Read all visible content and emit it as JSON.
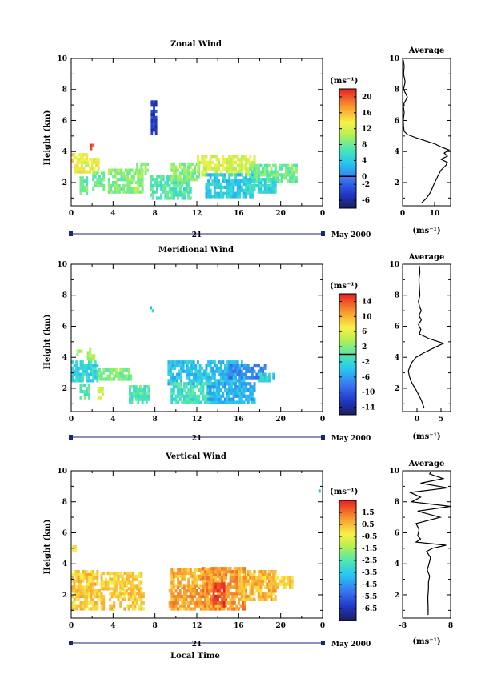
{
  "chart_data": [
    {
      "type": "heatmap",
      "title": "Zonal Wind",
      "xlabel": "",
      "ylabel": "Height (km)",
      "xlim": [
        0,
        24
      ],
      "ylim": [
        0.5,
        10
      ],
      "xticks": [
        "0",
        "4",
        "8",
        "12",
        "16",
        "20",
        "0"
      ],
      "yticks": [
        "2",
        "4",
        "6",
        "8",
        "10"
      ],
      "date_day": "21",
      "date_label": "May 2000",
      "colorbar": {
        "unit": "(ms⁻¹)",
        "min": -8,
        "max": 22,
        "ticks": [
          "-6",
          "-2",
          "0",
          "4",
          "8",
          "12",
          "16",
          "20"
        ],
        "contour": 0
      },
      "patches": [
        {
          "x": [
            0.0,
            1.5
          ],
          "y": [
            3.3,
            3.9
          ],
          "v": 14
        },
        {
          "x": [
            0.3,
            2.6
          ],
          "y": [
            2.6,
            3.6
          ],
          "v": 13
        },
        {
          "x": [
            0.8,
            1.5
          ],
          "y": [
            1.2,
            2.4
          ],
          "v": 8
        },
        {
          "x": [
            1.8,
            2.2
          ],
          "y": [
            4.1,
            4.5
          ],
          "v": 20
        },
        {
          "x": [
            2.0,
            3.2
          ],
          "y": [
            1.5,
            2.6
          ],
          "v": 8
        },
        {
          "x": [
            3.5,
            6.8
          ],
          "y": [
            1.3,
            2.9
          ],
          "v": 9
        },
        {
          "x": [
            6.2,
            7.3
          ],
          "y": [
            2.5,
            3.2
          ],
          "v": 10
        },
        {
          "x": [
            7.5,
            11.3
          ],
          "y": [
            0.9,
            2.4
          ],
          "v": 7
        },
        {
          "x": [
            9.5,
            12.2
          ],
          "y": [
            2.1,
            3.3
          ],
          "v": 9
        },
        {
          "x": [
            12.0,
            17.5
          ],
          "y": [
            2.4,
            3.8
          ],
          "v": 12
        },
        {
          "x": [
            12.8,
            17.2
          ],
          "y": [
            1.0,
            2.6
          ],
          "v": 4
        },
        {
          "x": [
            17.0,
            21.5
          ],
          "y": [
            2.0,
            3.2
          ],
          "v": 8
        },
        {
          "x": [
            16.8,
            19.5
          ],
          "y": [
            1.3,
            2.3
          ],
          "v": 5
        },
        {
          "x": [
            7.6,
            8.2
          ],
          "y": [
            5.1,
            7.2
          ],
          "v": -4
        }
      ],
      "profile": {
        "title": "Average",
        "xlabel": "(ms⁻¹)",
        "xlim": [
          0,
          15
        ],
        "xticks": [
          "0",
          "10"
        ],
        "yticks": [
          "2",
          "4",
          "6",
          "8",
          "10"
        ],
        "height": [
          0.7,
          1.0,
          1.3,
          1.6,
          1.9,
          2.2,
          2.5,
          2.8,
          3.1,
          3.3,
          3.5,
          3.7,
          3.9,
          4.1,
          4.3,
          4.5,
          4.7,
          4.9,
          5.1,
          5.3,
          5.6,
          6.0,
          6.5,
          7.0,
          7.5,
          8.0,
          8.5,
          9.0,
          9.5,
          9.9
        ],
        "value": [
          6.0,
          7.5,
          8.5,
          9.2,
          9.8,
          10.5,
          11.2,
          12.0,
          13.5,
          14.0,
          12.0,
          14.0,
          13.0,
          14.5,
          12.0,
          10.0,
          7.0,
          4.0,
          1.5,
          0.5,
          0.3,
          0.2,
          0.5,
          0.2,
          1.5,
          0.3,
          0.8,
          0.3,
          0.5,
          0.2
        ]
      }
    },
    {
      "type": "heatmap",
      "title": "Meridional Wind",
      "xlabel": "",
      "ylabel": "Height (km)",
      "xlim": [
        0,
        24
      ],
      "ylim": [
        0.5,
        10
      ],
      "xticks": [
        "0",
        "4",
        "8",
        "12",
        "16",
        "20",
        "0"
      ],
      "yticks": [
        "2",
        "4",
        "6",
        "8",
        "10"
      ],
      "date_day": "21",
      "date_label": "May 2000",
      "colorbar": {
        "unit": "(ms⁻¹)",
        "min": -16,
        "max": 16,
        "ticks": [
          "-14",
          "-10",
          "-6",
          "-2",
          "2",
          "6",
          "10",
          "14"
        ],
        "contour": 0
      },
      "patches": [
        {
          "x": [
            0.0,
            2.5
          ],
          "y": [
            2.4,
            3.7
          ],
          "v": -2
        },
        {
          "x": [
            1.5,
            2.2
          ],
          "y": [
            3.8,
            4.6
          ],
          "v": 4
        },
        {
          "x": [
            0.5,
            1.0
          ],
          "y": [
            4.1,
            4.4
          ],
          "v": 4
        },
        {
          "x": [
            2.6,
            5.8
          ],
          "y": [
            2.5,
            3.2
          ],
          "v": 2
        },
        {
          "x": [
            0.8,
            1.6
          ],
          "y": [
            1.3,
            2.2
          ],
          "v": 0
        },
        {
          "x": [
            2.5,
            3.1
          ],
          "y": [
            1.3,
            2.1
          ],
          "v": 5
        },
        {
          "x": [
            5.5,
            7.5
          ],
          "y": [
            1.0,
            2.0
          ],
          "v": 0
        },
        {
          "x": [
            9.2,
            16.5
          ],
          "y": [
            2.2,
            3.7
          ],
          "v": -4
        },
        {
          "x": [
            9.5,
            13.5
          ],
          "y": [
            1.0,
            2.3
          ],
          "v": -1
        },
        {
          "x": [
            13.0,
            17.5
          ],
          "y": [
            1.0,
            2.4
          ],
          "v": -5
        },
        {
          "x": [
            15.0,
            18.5
          ],
          "y": [
            2.6,
            3.6
          ],
          "v": -7
        },
        {
          "x": [
            17.8,
            19.3
          ],
          "y": [
            2.4,
            3.0
          ],
          "v": -3
        },
        {
          "x": [
            7.5,
            7.8
          ],
          "y": [
            6.9,
            7.2
          ],
          "v": -2
        }
      ],
      "profile": {
        "title": "Average",
        "xlabel": "(ms⁻¹)",
        "xlim": [
          -3,
          7
        ],
        "xticks": [
          "0",
          "5"
        ],
        "yticks": [
          "2",
          "4",
          "6",
          "8",
          "10"
        ],
        "height": [
          0.7,
          1.0,
          1.3,
          1.6,
          1.9,
          2.2,
          2.5,
          2.8,
          3.1,
          3.4,
          3.7,
          4.0,
          4.3,
          4.6,
          4.9,
          5.2,
          5.5,
          5.8,
          6.1,
          6.4,
          6.7,
          7.0,
          7.3,
          7.6,
          8.0,
          8.5,
          9.0,
          9.5,
          9.9
        ],
        "value": [
          1.5,
          1.2,
          0.8,
          0.3,
          -0.2,
          -0.8,
          -1.3,
          -1.6,
          -1.8,
          -1.5,
          -1.0,
          -0.2,
          1.5,
          3.5,
          5.5,
          2.5,
          0.5,
          0.8,
          0.3,
          0.9,
          0.4,
          0.9,
          0.5,
          0.3,
          0.6,
          0.5,
          0.4,
          0.6,
          0.5
        ]
      }
    },
    {
      "type": "heatmap",
      "title": "Vertical Wind",
      "xlabel": "Local Time",
      "ylabel": "Height (km)",
      "xlim": [
        0,
        24
      ],
      "ylim": [
        0.5,
        10
      ],
      "xticks": [
        "0",
        "4",
        "8",
        "12",
        "16",
        "20",
        "0"
      ],
      "yticks": [
        "2",
        "4",
        "6",
        "8",
        "10"
      ],
      "date_day": "21",
      "date_label": "May 2000",
      "colorbar": {
        "unit": "(ms⁻¹)",
        "min": -7.5,
        "max": 2.5,
        "ticks": [
          "-6.5",
          "-5.5",
          "-4.5",
          "-3.5",
          "-2.5",
          "-1.5",
          "-0.5",
          "0.5",
          "1.5"
        ],
        "contour": null
      },
      "patches": [
        {
          "x": [
            0.0,
            2.6
          ],
          "y": [
            2.2,
            3.6
          ],
          "v": 0.3
        },
        {
          "x": [
            0.0,
            3.2
          ],
          "y": [
            1.0,
            2.2
          ],
          "v": 0.2
        },
        {
          "x": [
            2.8,
            6.8
          ],
          "y": [
            2.3,
            3.4
          ],
          "v": 0.1
        },
        {
          "x": [
            3.6,
            7.0
          ],
          "y": [
            1.0,
            2.2
          ],
          "v": 0.2
        },
        {
          "x": [
            0.1,
            0.5
          ],
          "y": [
            4.8,
            5.2
          ],
          "v": 0.1
        },
        {
          "x": [
            9.3,
            13.5
          ],
          "y": [
            1.0,
            2.6
          ],
          "v": 0.8
        },
        {
          "x": [
            9.5,
            14.5
          ],
          "y": [
            2.5,
            3.7
          ],
          "v": 0.6
        },
        {
          "x": [
            12.5,
            16.5
          ],
          "y": [
            1.0,
            3.8
          ],
          "v": 1.0
        },
        {
          "x": [
            13.5,
            14.5
          ],
          "y": [
            1.2,
            2.8
          ],
          "v": 2.2
        },
        {
          "x": [
            16.0,
            19.5
          ],
          "y": [
            1.6,
            3.5
          ],
          "v": 0.5
        },
        {
          "x": [
            19.0,
            21.0
          ],
          "y": [
            2.4,
            3.2
          ],
          "v": 0.2
        },
        {
          "x": [
            23.6,
            23.8
          ],
          "y": [
            8.4,
            8.7
          ],
          "v": -3.5
        }
      ],
      "profile": {
        "title": "Average",
        "xlabel": "(ms⁻¹)",
        "xlim": [
          -8,
          8
        ],
        "xticks": [
          "-8",
          "8"
        ],
        "yticks": [
          "2",
          "4",
          "6",
          "8",
          "10"
        ],
        "height": [
          0.7,
          1.2,
          1.8,
          2.4,
          2.8,
          3.2,
          3.6,
          4.0,
          4.4,
          4.8,
          5.0,
          5.2,
          5.4,
          5.6,
          5.8,
          6.2,
          6.6,
          7.0,
          7.4,
          7.7,
          8.0,
          8.3,
          8.6,
          8.9,
          9.2,
          9.5,
          9.8,
          9.95
        ],
        "value": [
          0.5,
          0.5,
          0.4,
          0.6,
          0.6,
          1.0,
          0.2,
          0.8,
          1.3,
          0.0,
          2.0,
          6.5,
          -3.5,
          -2.0,
          -3.0,
          -2.5,
          -3.5,
          4.5,
          -3.0,
          8.0,
          -5.0,
          -2.0,
          -5.5,
          7.0,
          -2.0,
          5.5,
          1.0,
          1.5
        ]
      }
    }
  ]
}
